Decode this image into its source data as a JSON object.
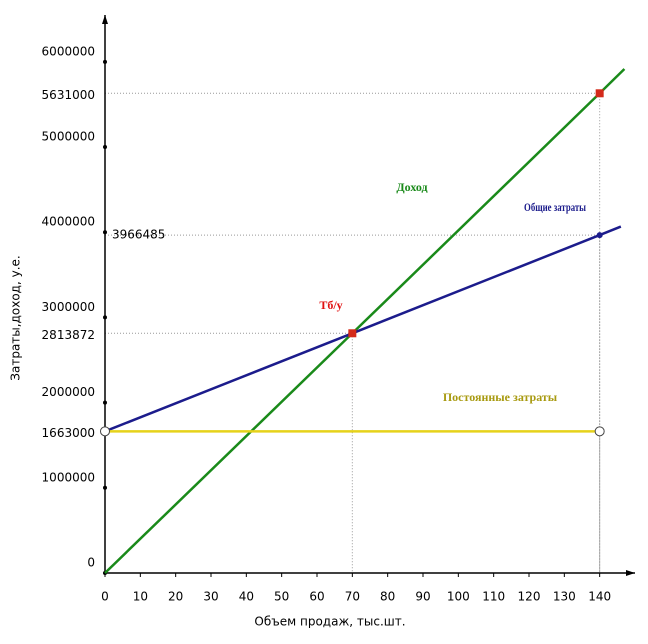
{
  "chart_data": {
    "type": "line",
    "xlabel": "Объем продаж, тыс.шт.",
    "ylabel": "Затраты,доход, у.е.",
    "xlim": [
      0,
      150
    ],
    "ylim": [
      0,
      6550000
    ],
    "xticks": [
      0,
      10,
      20,
      30,
      40,
      50,
      60,
      70,
      80,
      90,
      100,
      110,
      120,
      130,
      140
    ],
    "yticks": [
      0,
      1000000,
      2000000,
      3000000,
      4000000,
      5000000,
      6000000
    ],
    "series": [
      {
        "name": "Доход",
        "color": "#1a8a1a",
        "x": [
          0,
          70,
          140,
          147
        ],
        "values": [
          0,
          2813872,
          5631000,
          5915700
        ]
      },
      {
        "name": "Общие затраты",
        "color": "#1c1c8c",
        "x": [
          0,
          70,
          140,
          146
        ],
        "values": [
          1663000,
          2813872,
          3966485,
          4067000
        ]
      },
      {
        "name": "Постоянные затраты",
        "color": "#e6d21a",
        "x": [
          0,
          140
        ],
        "values": [
          1663000,
          1663000
        ]
      }
    ],
    "break_even_label": "Тб/у",
    "guides": [
      {
        "x": 140,
        "y": 5631000,
        "marker": "square",
        "color": "#d42a1a"
      },
      {
        "x": 140,
        "y": 3966485,
        "marker": "dot",
        "color": "#1c1c8c"
      },
      {
        "x": 70,
        "y": 2813872,
        "marker": "square",
        "color": "#d42a1a"
      },
      {
        "x": 140,
        "y": 1663000,
        "marker": "circle",
        "color": "#444444"
      }
    ]
  }
}
